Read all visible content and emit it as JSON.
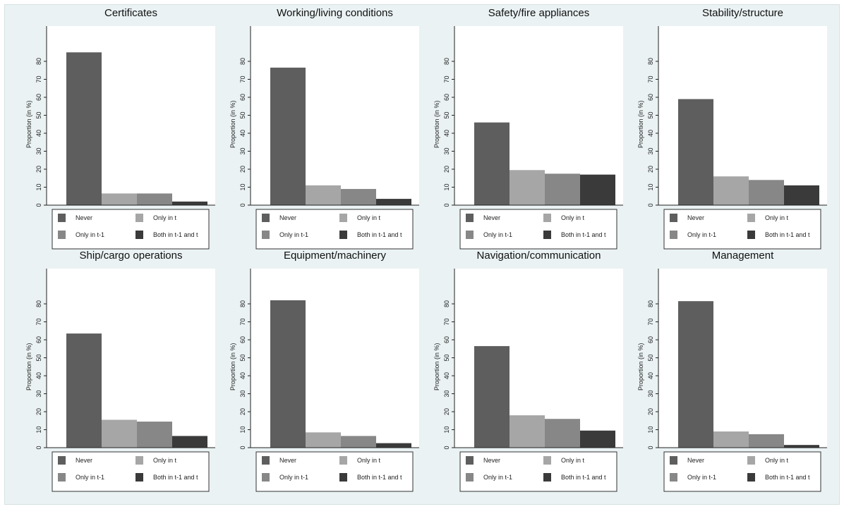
{
  "colors": {
    "background": "#eaf2f3",
    "plot_background": "#ffffff",
    "never": "#5e5e5e",
    "only_in_t": "#a6a6a6",
    "only_in_t_minus_1": "#878787",
    "both": "#3a3a3a"
  },
  "chart_data": [
    {
      "type": "bar",
      "title": "Certificates",
      "ylabel": "Proportion (in %)",
      "yticks": [
        0,
        10,
        20,
        30,
        40,
        50,
        60,
        70,
        80
      ],
      "ylim": [
        0,
        90
      ],
      "grid": false,
      "legend_position": "bottom",
      "series": [
        {
          "name": "Never",
          "values": [
            85
          ]
        },
        {
          "name": "Only in t",
          "values": [
            6.5
          ]
        },
        {
          "name": "Only in t-1",
          "values": [
            6.5
          ]
        },
        {
          "name": "Both in t-1 and t",
          "values": [
            2
          ]
        }
      ]
    },
    {
      "type": "bar",
      "title": "Working/living conditions",
      "ylabel": "Proportion (in %)",
      "yticks": [
        0,
        10,
        20,
        30,
        40,
        50,
        60,
        70,
        80
      ],
      "ylim": [
        0,
        90
      ],
      "grid": false,
      "legend_position": "bottom",
      "series": [
        {
          "name": "Never",
          "values": [
            76.5
          ]
        },
        {
          "name": "Only in t",
          "values": [
            11
          ]
        },
        {
          "name": "Only in t-1",
          "values": [
            9
          ]
        },
        {
          "name": "Both in t-1 and t",
          "values": [
            3.5
          ]
        }
      ]
    },
    {
      "type": "bar",
      "title": "Safety/fire appliances",
      "ylabel": "Proportion (in %)",
      "yticks": [
        0,
        10,
        20,
        30,
        40,
        50,
        60,
        70,
        80
      ],
      "ylim": [
        0,
        90
      ],
      "grid": false,
      "legend_position": "bottom",
      "series": [
        {
          "name": "Never",
          "values": [
            46
          ]
        },
        {
          "name": "Only in t",
          "values": [
            19.5
          ]
        },
        {
          "name": "Only in t-1",
          "values": [
            17.5
          ]
        },
        {
          "name": "Both in t-1 and t",
          "values": [
            17
          ]
        }
      ]
    },
    {
      "type": "bar",
      "title": "Stability/structure",
      "ylabel": "Proportion (in %)",
      "yticks": [
        0,
        10,
        20,
        30,
        40,
        50,
        60,
        70,
        80
      ],
      "ylim": [
        0,
        90
      ],
      "grid": false,
      "legend_position": "bottom",
      "series": [
        {
          "name": "Never",
          "values": [
            59
          ]
        },
        {
          "name": "Only in t",
          "values": [
            16
          ]
        },
        {
          "name": "Only in t-1",
          "values": [
            14
          ]
        },
        {
          "name": "Both in t-1 and t",
          "values": [
            11
          ]
        }
      ]
    },
    {
      "type": "bar",
      "title": "Ship/cargo operations",
      "ylabel": "Proportion (in %)",
      "yticks": [
        0,
        10,
        20,
        30,
        40,
        50,
        60,
        70,
        80
      ],
      "ylim": [
        0,
        90
      ],
      "grid": false,
      "legend_position": "bottom",
      "series": [
        {
          "name": "Never",
          "values": [
            63.5
          ]
        },
        {
          "name": "Only in t",
          "values": [
            15.5
          ]
        },
        {
          "name": "Only in t-1",
          "values": [
            14.5
          ]
        },
        {
          "name": "Both in t-1 and t",
          "values": [
            6.5
          ]
        }
      ]
    },
    {
      "type": "bar",
      "title": "Equipment/machinery",
      "ylabel": "Proportion (in %)",
      "yticks": [
        0,
        10,
        20,
        30,
        40,
        50,
        60,
        70,
        80
      ],
      "ylim": [
        0,
        90
      ],
      "grid": false,
      "legend_position": "bottom",
      "series": [
        {
          "name": "Never",
          "values": [
            82
          ]
        },
        {
          "name": "Only in t",
          "values": [
            8.5
          ]
        },
        {
          "name": "Only in t-1",
          "values": [
            6.5
          ]
        },
        {
          "name": "Both in t-1 and t",
          "values": [
            2.5
          ]
        }
      ]
    },
    {
      "type": "bar",
      "title": "Navigation/communication",
      "ylabel": "Proportion (in %)",
      "yticks": [
        0,
        10,
        20,
        30,
        40,
        50,
        60,
        70,
        80
      ],
      "ylim": [
        0,
        90
      ],
      "grid": false,
      "legend_position": "bottom",
      "series": [
        {
          "name": "Never",
          "values": [
            56.5
          ]
        },
        {
          "name": "Only in t",
          "values": [
            18
          ]
        },
        {
          "name": "Only in t-1",
          "values": [
            16
          ]
        },
        {
          "name": "Both in t-1 and t",
          "values": [
            9.5
          ]
        }
      ]
    },
    {
      "type": "bar",
      "title": "Management",
      "ylabel": "Proportion (in %)",
      "yticks": [
        0,
        10,
        20,
        30,
        40,
        50,
        60,
        70,
        80
      ],
      "ylim": [
        0,
        90
      ],
      "grid": false,
      "legend_position": "bottom",
      "series": [
        {
          "name": "Never",
          "values": [
            81.5
          ]
        },
        {
          "name": "Only in t",
          "values": [
            9
          ]
        },
        {
          "name": "Only in t-1",
          "values": [
            7.5
          ]
        },
        {
          "name": "Both in t-1 and t",
          "values": [
            1.5
          ]
        }
      ]
    }
  ]
}
